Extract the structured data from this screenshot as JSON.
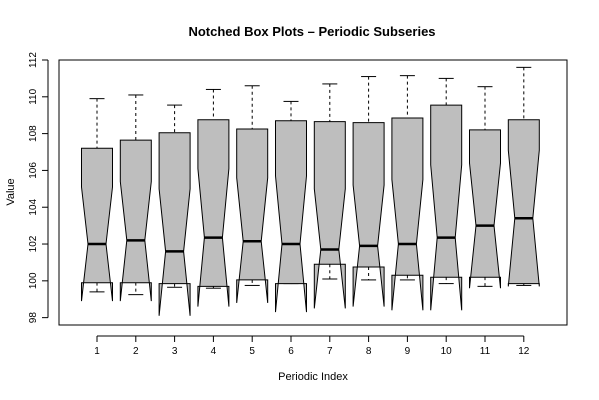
{
  "chart_data": {
    "type": "boxplot",
    "title": "Notched Box Plots – Periodic Subseries",
    "xlabel": "Periodic Index",
    "ylabel": "Value",
    "ylim": [
      97.6,
      112.0
    ],
    "yticks": [
      98,
      100,
      102,
      104,
      106,
      108,
      110,
      112
    ],
    "categories": [
      "1",
      "2",
      "3",
      "4",
      "5",
      "6",
      "7",
      "8",
      "9",
      "10",
      "11",
      "12"
    ],
    "boxes": [
      {
        "label": "1",
        "whisker_low": 99.4,
        "q1": 99.9,
        "median": 102.0,
        "q3": 107.2,
        "whisker_high": 109.9,
        "notch_low": 98.9,
        "notch_high": 105.1
      },
      {
        "label": "2",
        "whisker_low": 99.25,
        "q1": 99.9,
        "median": 102.2,
        "q3": 107.65,
        "whisker_high": 110.1,
        "notch_low": 98.9,
        "notch_high": 105.4
      },
      {
        "label": "3",
        "whisker_low": 99.65,
        "q1": 99.85,
        "median": 101.6,
        "q3": 108.05,
        "whisker_high": 109.55,
        "notch_low": 98.1,
        "notch_high": 105.0
      },
      {
        "label": "4",
        "whisker_low": 99.6,
        "q1": 99.7,
        "median": 102.35,
        "q3": 108.75,
        "whisker_high": 110.4,
        "notch_low": 98.6,
        "notch_high": 106.1
      },
      {
        "label": "5",
        "whisker_low": 99.75,
        "q1": 100.05,
        "median": 102.15,
        "q3": 108.25,
        "whisker_high": 110.6,
        "notch_low": 98.8,
        "notch_high": 105.6
      },
      {
        "label": "6",
        "whisker_low": 99.85,
        "q1": 99.85,
        "median": 102.0,
        "q3": 108.7,
        "whisker_high": 109.75,
        "notch_low": 98.3,
        "notch_high": 105.7
      },
      {
        "label": "7",
        "whisker_low": 100.1,
        "q1": 100.9,
        "median": 101.7,
        "q3": 108.65,
        "whisker_high": 110.7,
        "notch_low": 98.5,
        "notch_high": 105.0
      },
      {
        "label": "8",
        "whisker_low": 100.05,
        "q1": 100.75,
        "median": 101.9,
        "q3": 108.6,
        "whisker_high": 111.1,
        "notch_low": 98.6,
        "notch_high": 105.2
      },
      {
        "label": "9",
        "whisker_low": 100.05,
        "q1": 100.3,
        "median": 102.0,
        "q3": 108.85,
        "whisker_high": 111.15,
        "notch_low": 98.4,
        "notch_high": 105.5
      },
      {
        "label": "10",
        "whisker_low": 99.85,
        "q1": 100.2,
        "median": 102.35,
        "q3": 109.55,
        "whisker_high": 111.0,
        "notch_low": 98.4,
        "notch_high": 106.3
      },
      {
        "label": "11",
        "whisker_low": 99.7,
        "q1": 100.2,
        "median": 103.0,
        "q3": 108.2,
        "whisker_high": 110.55,
        "notch_low": 99.6,
        "notch_high": 106.4
      },
      {
        "label": "12",
        "whisker_low": 99.75,
        "q1": 99.85,
        "median": 103.4,
        "q3": 108.75,
        "whisker_high": 111.6,
        "notch_low": 99.7,
        "notch_high": 107.1
      }
    ],
    "grid": false,
    "colors": {
      "box_fill": "#bebebe",
      "line": "#000000",
      "background": "#ffffff"
    }
  }
}
